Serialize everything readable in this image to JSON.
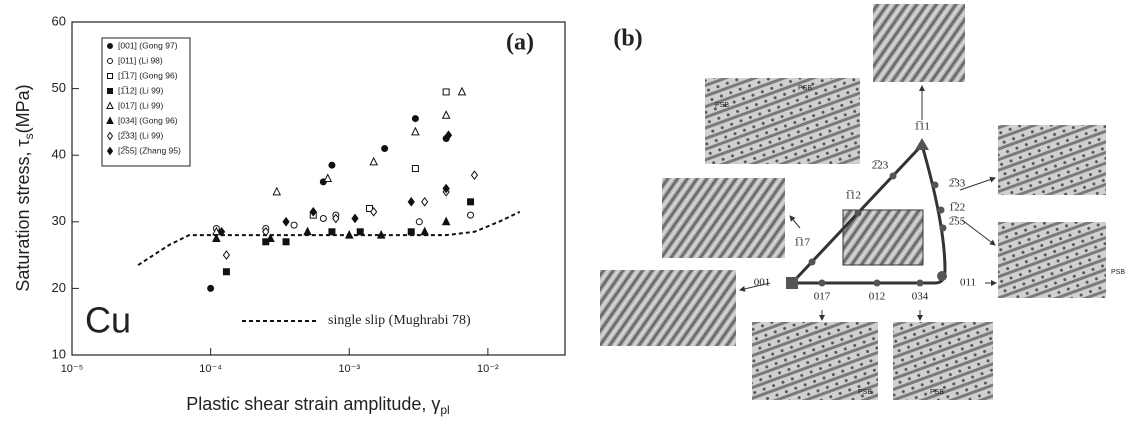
{
  "chart_data": {
    "type": "scatter",
    "title": "(a)",
    "annotation": "Cu",
    "y_label": "Saturation stress, τ",
    "y_label_sub": "s",
    "y_label_unit": "(MPa)",
    "x_label": "Plastic shear strain amplitude, γ",
    "x_label_sub": "pl",
    "xlog": true,
    "xlim": [
      1e-05,
      0.036
    ],
    "ylim": [
      10,
      60
    ],
    "xticks": [
      {
        "value": 1e-05,
        "label": "10⁻⁵"
      },
      {
        "value": 0.0001,
        "label": "10⁻⁴"
      },
      {
        "value": 0.001,
        "label": "10⁻³"
      },
      {
        "value": 0.01,
        "label": "10⁻²"
      }
    ],
    "yticks": [
      10,
      20,
      30,
      40,
      50,
      60
    ],
    "series": [
      {
        "name": "[001] (Gong  97)",
        "marker": "circle",
        "filled": true,
        "x": [
          0.0001,
          0.00065,
          0.00075,
          0.0018,
          0.003,
          0.005
        ],
        "values": [
          20,
          36,
          38.5,
          41,
          45.5,
          42.5
        ]
      },
      {
        "name": "[011] (Li  98)",
        "marker": "circle",
        "filled": false,
        "x": [
          0.00011,
          0.00025,
          0.0004,
          0.00065,
          0.0008,
          0.0032,
          0.0075
        ],
        "values": [
          29,
          29,
          29.5,
          30.5,
          31,
          30,
          31
        ]
      },
      {
        "name": "[1̅17] (Gong  96)",
        "marker": "square",
        "filled": false,
        "x": [
          0.00055,
          0.0014,
          0.003,
          0.005
        ],
        "values": [
          31,
          32,
          38,
          49.5
        ]
      },
      {
        "name": "[1̅12] (Li  99)",
        "marker": "square",
        "filled": true,
        "x": [
          0.00013,
          0.00025,
          0.00035,
          0.00075,
          0.0012,
          0.0028,
          0.0075
        ],
        "values": [
          22.5,
          27,
          27,
          28.5,
          28.5,
          28.5,
          33
        ]
      },
      {
        "name": "[017] (Li  99)",
        "marker": "triangle",
        "filled": false,
        "x": [
          0.00011,
          0.0003,
          0.0007,
          0.0015,
          0.003,
          0.005,
          0.0065
        ],
        "values": [
          28.5,
          34.5,
          36.5,
          39,
          43.5,
          46,
          49.5
        ]
      },
      {
        "name": "[034] (Gong  96)",
        "marker": "triangle",
        "filled": true,
        "x": [
          0.00011,
          0.00027,
          0.0005,
          0.001,
          0.0017,
          0.0035,
          0.005
        ],
        "values": [
          27.5,
          27.5,
          28.5,
          28,
          28,
          28.5,
          30
        ]
      },
      {
        "name": "[2̅33] (Li  99)",
        "marker": "diamond",
        "filled": false,
        "x": [
          0.00013,
          0.00025,
          0.0008,
          0.0015,
          0.0035,
          0.005,
          0.008
        ],
        "values": [
          25,
          28.5,
          30.5,
          31.5,
          33,
          34.5,
          37
        ]
      },
      {
        "name": "[2̅55] (Zhang  95)",
        "marker": "diamond",
        "filled": true,
        "x": [
          0.00012,
          0.00035,
          0.00055,
          0.0011,
          0.0028,
          0.005,
          0.0052
        ],
        "values": [
          28.5,
          30,
          31.5,
          30.5,
          33,
          35,
          43
        ]
      }
    ],
    "reference": {
      "name": "single slip (Mughrabi  78)",
      "x": [
        3e-05,
        5e-05,
        7e-05,
        0.0001,
        0.001,
        0.005,
        0.008,
        0.012,
        0.017
      ],
      "values": [
        23.5,
        26.5,
        28,
        28,
        28,
        28,
        28.5,
        30,
        31.5
      ]
    }
  },
  "diagram": {
    "label": "(b)",
    "poles": [
      "001",
      "011",
      "1̅11",
      "1̅17",
      "1̅12",
      "2̅23",
      "2̅33",
      "1̅22",
      "2̅55",
      "017",
      "012",
      "034"
    ],
    "psb": [
      "PSB",
      "PSB",
      "PSB",
      "PSB",
      "PSB"
    ]
  }
}
